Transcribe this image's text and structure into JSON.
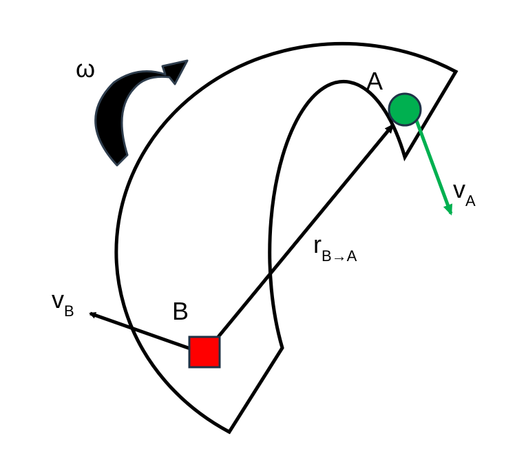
{
  "labels": {
    "omega": "ω",
    "point_a": "A",
    "point_b": "B",
    "v_main": "v",
    "v_a_sub": "A",
    "v_b_sub": "B",
    "r_main": "r",
    "r_sub": "B→A"
  },
  "colors": {
    "point_a_fill": "#00b050",
    "point_a_stroke": "#1f3347",
    "point_b_fill": "#ff0000",
    "point_b_stroke": "#1f3347",
    "velocity_a": "#00b050",
    "velocity_b": "#000000",
    "rotation_arrow": "#000000",
    "rotation_arrow_outline": "#2f3e4e",
    "body_outline": "#000000"
  },
  "icons": {
    "rotation": "curved-arrow-clockwise"
  }
}
